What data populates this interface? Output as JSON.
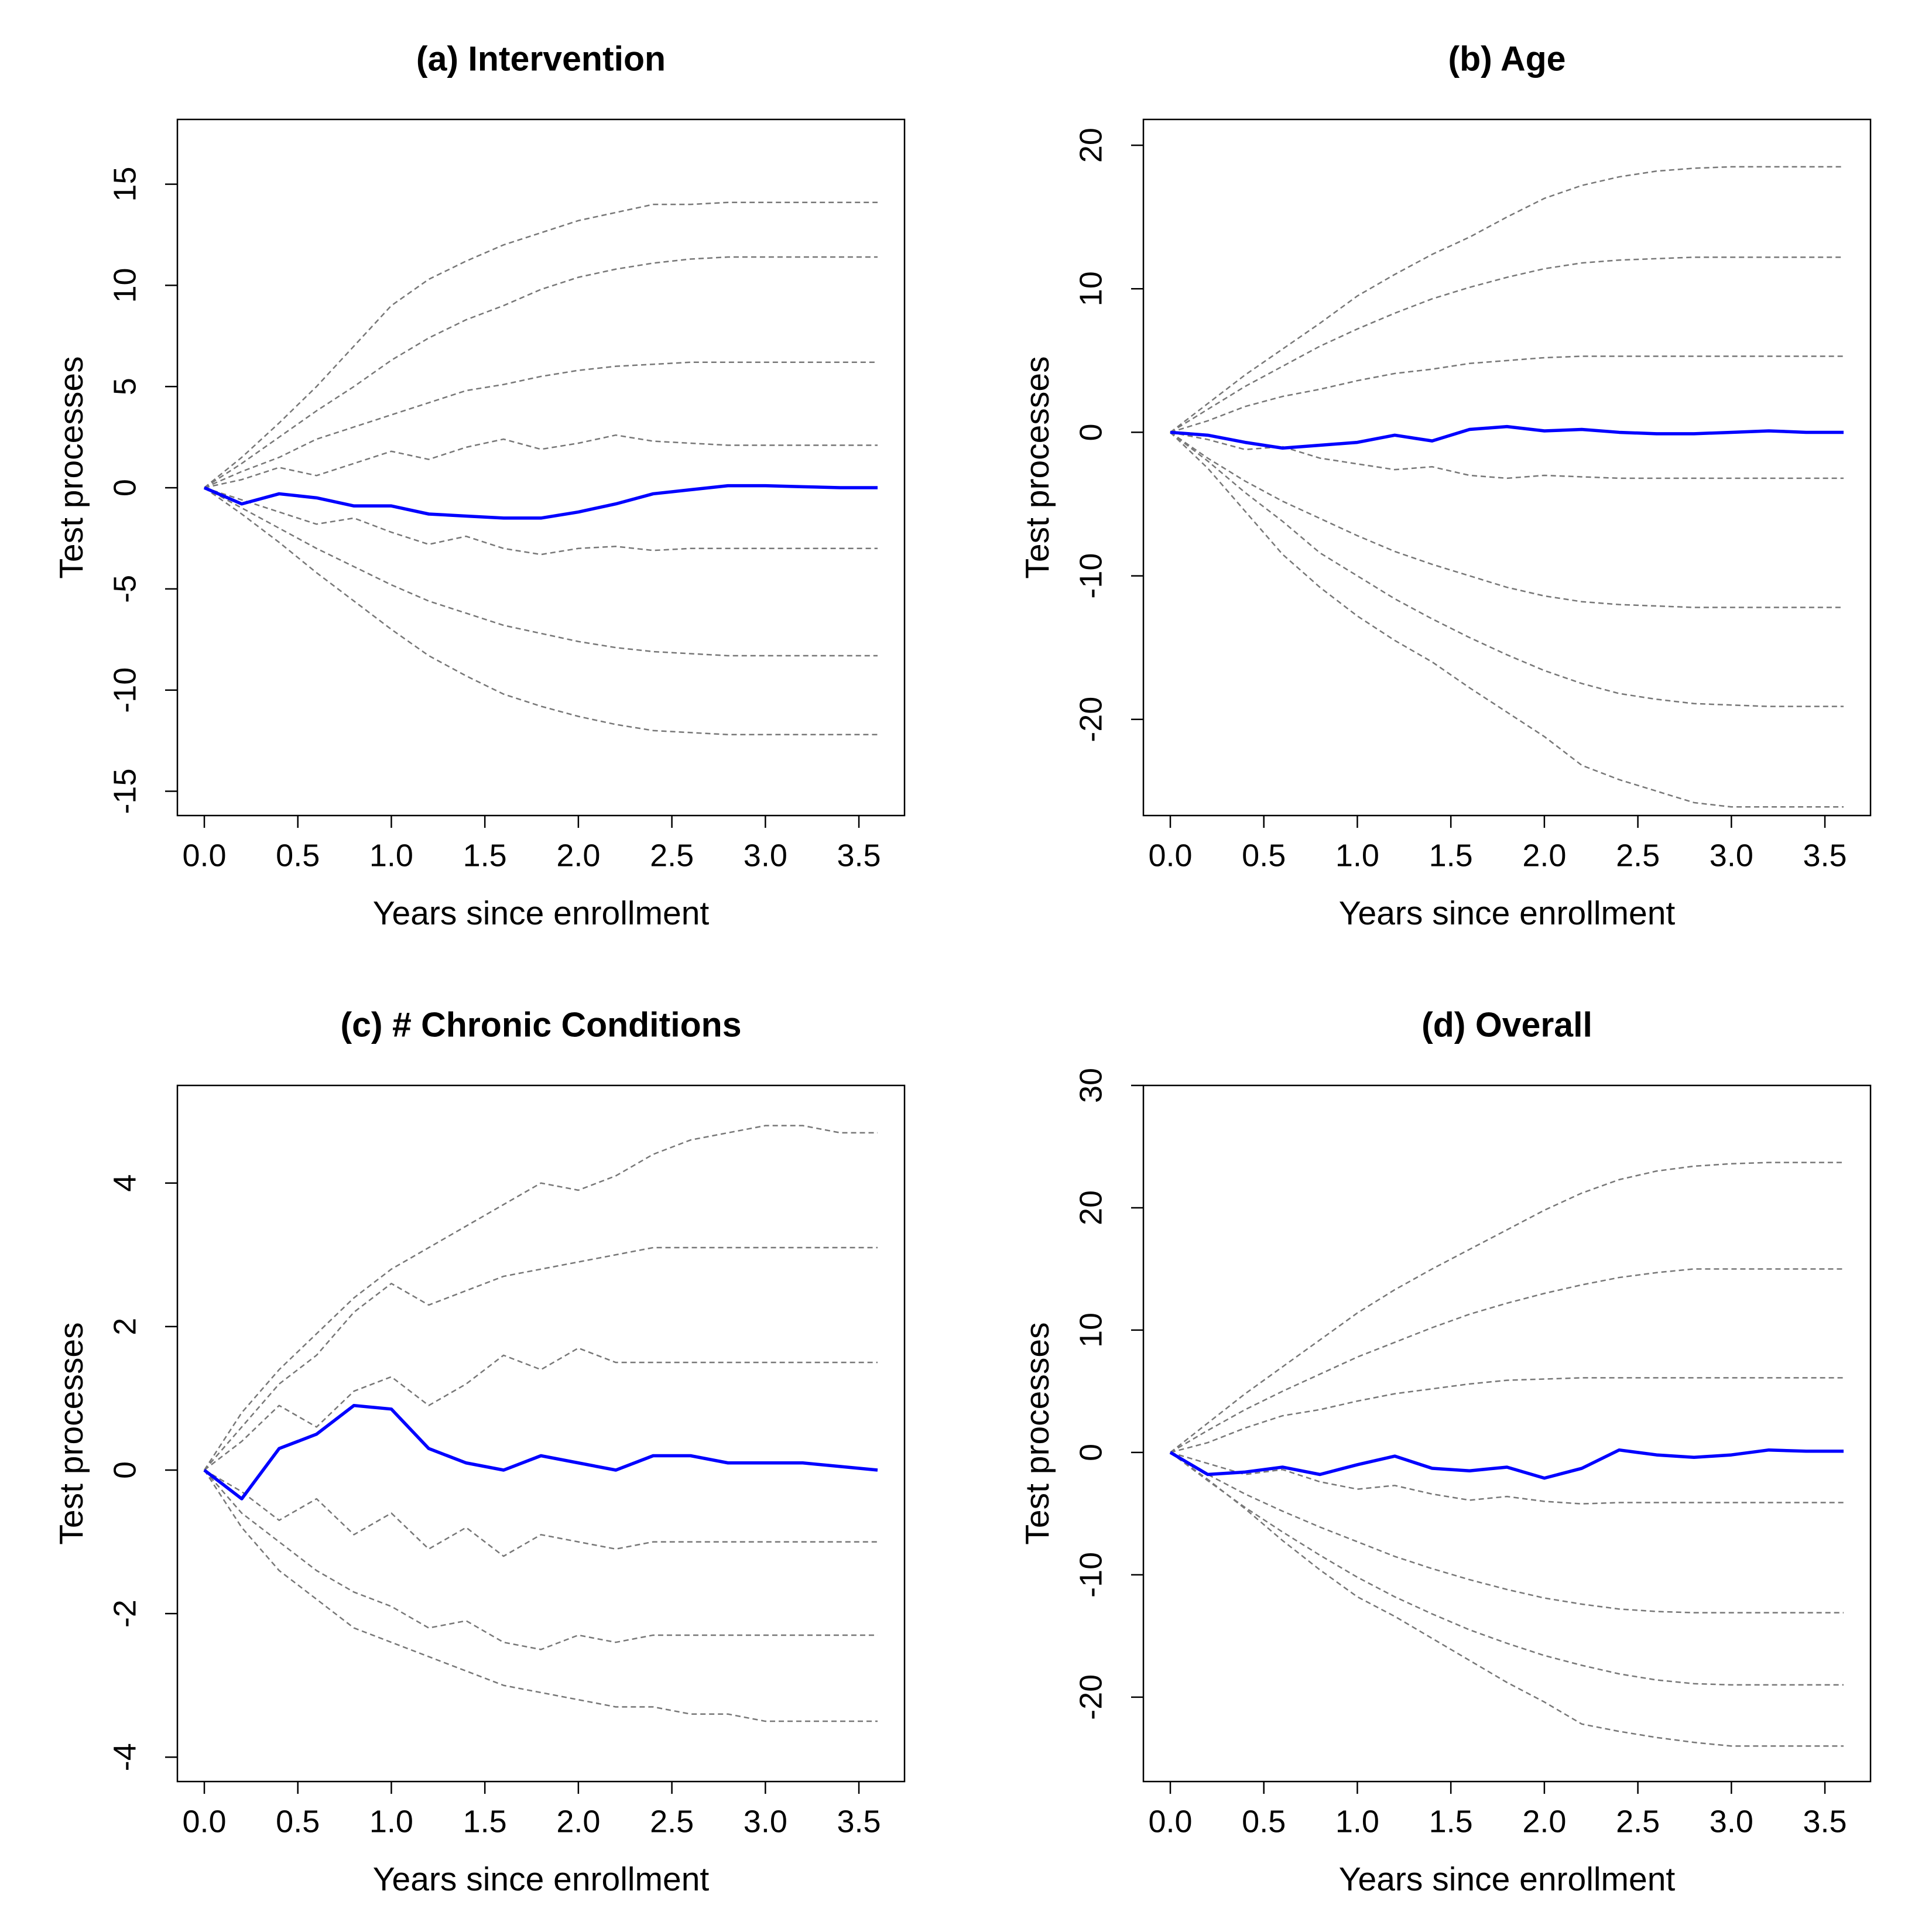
{
  "chart_data": [
    {
      "type": "line",
      "title": "(a) Intervention",
      "xlabel": "Years since enrollment",
      "ylabel": "Test processes",
      "xlim": [
        -0.144,
        3.744
      ],
      "ylim": [
        -16.2,
        18.2
      ],
      "xticks": [
        {
          "value": 0,
          "label": "0.0"
        },
        0.5,
        {
          "value": 1,
          "label": "1.0"
        },
        1.5,
        {
          "value": 2,
          "label": "2.0"
        },
        2.5,
        {
          "value": 3,
          "label": "3.0"
        },
        3.5
      ],
      "yticks": [
        -15,
        -10,
        -5,
        0,
        5,
        10,
        15
      ],
      "x": [
        0,
        0.2,
        0.4,
        0.6,
        0.8,
        1.0,
        1.2,
        1.4,
        1.6,
        1.8,
        2.0,
        2.2,
        2.4,
        2.6,
        2.8,
        3.0,
        3.2,
        3.4,
        3.6
      ],
      "series": [
        {
          "color": "#777777",
          "dash": true,
          "values": [
            0,
            1.5,
            3.2,
            5,
            7,
            9,
            10.3,
            11.2,
            12,
            12.6,
            13.2,
            13.6,
            14,
            14,
            14.1,
            14.1,
            14.1,
            14.1,
            14.1
          ]
        },
        {
          "color": "#777777",
          "dash": true,
          "values": [
            0,
            1.2,
            2.5,
            3.8,
            5,
            6.3,
            7.4,
            8.3,
            9,
            9.8,
            10.4,
            10.8,
            11.1,
            11.3,
            11.4,
            11.4,
            11.4,
            11.4,
            11.4
          ]
        },
        {
          "color": "#777777",
          "dash": true,
          "values": [
            0,
            0.8,
            1.5,
            2.4,
            3,
            3.6,
            4.2,
            4.8,
            5.1,
            5.5,
            5.8,
            6,
            6.1,
            6.2,
            6.2,
            6.2,
            6.2,
            6.2,
            6.2
          ]
        },
        {
          "color": "#777777",
          "dash": true,
          "values": [
            0,
            0.4,
            1,
            0.6,
            1.2,
            1.8,
            1.4,
            2,
            2.4,
            1.9,
            2.2,
            2.6,
            2.3,
            2.2,
            2.1,
            2.1,
            2.1,
            2.1,
            2.1
          ]
        },
        {
          "color": "#777777",
          "dash": true,
          "values": [
            0,
            -0.6,
            -1.2,
            -1.8,
            -1.5,
            -2.2,
            -2.8,
            -2.4,
            -3,
            -3.3,
            -3,
            -2.9,
            -3.1,
            -3,
            -3,
            -3,
            -3,
            -3,
            -3
          ]
        },
        {
          "color": "#777777",
          "dash": true,
          "values": [
            0,
            -1,
            -2,
            -3,
            -3.9,
            -4.8,
            -5.6,
            -6.2,
            -6.8,
            -7.2,
            -7.6,
            -7.9,
            -8.1,
            -8.2,
            -8.3,
            -8.3,
            -8.3,
            -8.3,
            -8.3
          ]
        },
        {
          "color": "#777777",
          "dash": true,
          "values": [
            0,
            -1.3,
            -2.7,
            -4.2,
            -5.6,
            -7,
            -8.3,
            -9.3,
            -10.2,
            -10.8,
            -11.3,
            -11.7,
            -12,
            -12.1,
            -12.2,
            -12.2,
            -12.2,
            -12.2,
            -12.2
          ]
        },
        {
          "color": "#0000ff",
          "dash": false,
          "values": [
            0,
            -0.8,
            -0.3,
            -0.5,
            -0.9,
            -0.9,
            -1.3,
            -1.4,
            -1.5,
            -1.5,
            -1.2,
            -0.8,
            -0.3,
            -0.1,
            0.1,
            0.1,
            0.05,
            0,
            0
          ]
        }
      ]
    },
    {
      "type": "line",
      "title": "(b) Age",
      "xlabel": "Years since enrollment",
      "ylabel": "Test processes",
      "xlim": [
        -0.144,
        3.744
      ],
      "ylim": [
        -26.7,
        21.8
      ],
      "xticks": [
        {
          "value": 0,
          "label": "0.0"
        },
        0.5,
        {
          "value": 1,
          "label": "1.0"
        },
        1.5,
        {
          "value": 2,
          "label": "2.0"
        },
        2.5,
        {
          "value": 3,
          "label": "3.0"
        },
        3.5
      ],
      "yticks": [
        -20,
        -10,
        0,
        10,
        20
      ],
      "x": [
        0,
        0.2,
        0.4,
        0.6,
        0.8,
        1.0,
        1.2,
        1.4,
        1.6,
        1.8,
        2.0,
        2.2,
        2.4,
        2.6,
        2.8,
        3.0,
        3.2,
        3.4,
        3.6
      ],
      "series": [
        {
          "color": "#777777",
          "dash": true,
          "values": [
            0,
            2,
            4,
            5.8,
            7.6,
            9.5,
            11,
            12.4,
            13.6,
            15,
            16.3,
            17.2,
            17.8,
            18.2,
            18.4,
            18.5,
            18.5,
            18.5,
            18.5
          ]
        },
        {
          "color": "#777777",
          "dash": true,
          "values": [
            0,
            1.6,
            3.2,
            4.6,
            6,
            7.2,
            8.3,
            9.3,
            10.1,
            10.8,
            11.4,
            11.8,
            12,
            12.1,
            12.2,
            12.2,
            12.2,
            12.2,
            12.2
          ]
        },
        {
          "color": "#777777",
          "dash": true,
          "values": [
            0,
            0.8,
            1.8,
            2.5,
            3,
            3.6,
            4.1,
            4.4,
            4.8,
            5,
            5.2,
            5.3,
            5.3,
            5.3,
            5.3,
            5.3,
            5.3,
            5.3,
            5.3
          ]
        },
        {
          "color": "#777777",
          "dash": true,
          "values": [
            0,
            -0.5,
            -1.2,
            -1,
            -1.8,
            -2.2,
            -2.6,
            -2.4,
            -3,
            -3.2,
            -3,
            -3.1,
            -3.2,
            -3.2,
            -3.2,
            -3.2,
            -3.2,
            -3.2,
            -3.2
          ]
        },
        {
          "color": "#777777",
          "dash": true,
          "values": [
            0,
            -1.8,
            -3.4,
            -4.8,
            -6,
            -7.2,
            -8.3,
            -9.2,
            -10,
            -10.8,
            -11.4,
            -11.8,
            -12,
            -12.1,
            -12.2,
            -12.2,
            -12.2,
            -12.2,
            -12.2
          ]
        },
        {
          "color": "#777777",
          "dash": true,
          "values": [
            0,
            -2,
            -4.2,
            -6.2,
            -8.4,
            -10,
            -11.6,
            -13,
            -14.3,
            -15.5,
            -16.6,
            -17.5,
            -18.2,
            -18.6,
            -18.9,
            -19,
            -19.1,
            -19.1,
            -19.1
          ]
        },
        {
          "color": "#777777",
          "dash": true,
          "values": [
            0,
            -2.5,
            -5.5,
            -8.5,
            -10.8,
            -12.8,
            -14.5,
            -16,
            -17.8,
            -19.5,
            -21.2,
            -23.2,
            -24.2,
            -25,
            -25.8,
            -26.1,
            -26.1,
            -26.1,
            -26.1
          ]
        },
        {
          "color": "#0000ff",
          "dash": false,
          "values": [
            0,
            -0.2,
            -0.7,
            -1.1,
            -0.9,
            -0.7,
            -0.2,
            -0.6,
            0.2,
            0.4,
            0.1,
            0.2,
            0,
            -0.1,
            -0.1,
            0,
            0.1,
            0,
            0
          ]
        }
      ]
    },
    {
      "type": "line",
      "title": "(c) # Chronic Conditions",
      "xlabel": "Years since enrollment",
      "ylabel": "Test processes",
      "xlim": [
        -0.144,
        3.744
      ],
      "ylim": [
        -4.34,
        5.36
      ],
      "xticks": [
        {
          "value": 0,
          "label": "0.0"
        },
        0.5,
        {
          "value": 1,
          "label": "1.0"
        },
        1.5,
        {
          "value": 2,
          "label": "2.0"
        },
        2.5,
        {
          "value": 3,
          "label": "3.0"
        },
        3.5
      ],
      "yticks": [
        -4,
        -2,
        0,
        2,
        4
      ],
      "x": [
        0,
        0.2,
        0.4,
        0.6,
        0.8,
        1.0,
        1.2,
        1.4,
        1.6,
        1.8,
        2.0,
        2.2,
        2.4,
        2.6,
        2.8,
        3.0,
        3.2,
        3.4,
        3.6
      ],
      "series": [
        {
          "color": "#777777",
          "dash": true,
          "values": [
            0,
            0.8,
            1.4,
            1.9,
            2.4,
            2.8,
            3.1,
            3.4,
            3.7,
            4,
            3.9,
            4.1,
            4.4,
            4.6,
            4.7,
            4.8,
            4.8,
            4.7,
            4.7
          ]
        },
        {
          "color": "#777777",
          "dash": true,
          "values": [
            0,
            0.6,
            1.2,
            1.6,
            2.2,
            2.6,
            2.3,
            2.5,
            2.7,
            2.8,
            2.9,
            3,
            3.1,
            3.1,
            3.1,
            3.1,
            3.1,
            3.1,
            3.1
          ]
        },
        {
          "color": "#777777",
          "dash": true,
          "values": [
            0,
            0.4,
            0.9,
            0.6,
            1.1,
            1.3,
            0.9,
            1.2,
            1.6,
            1.4,
            1.7,
            1.5,
            1.5,
            1.5,
            1.5,
            1.5,
            1.5,
            1.5,
            1.5
          ]
        },
        {
          "color": "#777777",
          "dash": true,
          "values": [
            0,
            -0.3,
            -0.7,
            -0.4,
            -0.9,
            -0.6,
            -1.1,
            -0.8,
            -1.2,
            -0.9,
            -1,
            -1.1,
            -1,
            -1,
            -1,
            -1,
            -1,
            -1,
            -1
          ]
        },
        {
          "color": "#777777",
          "dash": true,
          "values": [
            0,
            -0.6,
            -1,
            -1.4,
            -1.7,
            -1.9,
            -2.2,
            -2.1,
            -2.4,
            -2.5,
            -2.3,
            -2.4,
            -2.3,
            -2.3,
            -2.3,
            -2.3,
            -2.3,
            -2.3,
            -2.3
          ]
        },
        {
          "color": "#777777",
          "dash": true,
          "values": [
            0,
            -0.8,
            -1.4,
            -1.8,
            -2.2,
            -2.4,
            -2.6,
            -2.8,
            -3,
            -3.1,
            -3.2,
            -3.3,
            -3.3,
            -3.4,
            -3.4,
            -3.5,
            -3.5,
            -3.5,
            -3.5
          ]
        },
        {
          "color": "#0000ff",
          "dash": false,
          "values": [
            0,
            -0.4,
            0.3,
            0.5,
            0.9,
            0.85,
            0.3,
            0.1,
            0,
            0.2,
            0.1,
            0,
            0.2,
            0.2,
            0.1,
            0.1,
            0.1,
            0.05,
            0
          ]
        }
      ]
    },
    {
      "type": "line",
      "title": "(d) Overall",
      "xlabel": "Years since enrollment",
      "ylabel": "Test processes",
      "xlim": [
        -0.144,
        3.744
      ],
      "ylim": [
        -26.9,
        30
      ],
      "xticks": [
        {
          "value": 0,
          "label": "0.0"
        },
        0.5,
        {
          "value": 1,
          "label": "1.0"
        },
        1.5,
        {
          "value": 2,
          "label": "2.0"
        },
        2.5,
        {
          "value": 3,
          "label": "3.0"
        },
        3.5
      ],
      "yticks": [
        -20,
        -10,
        0,
        10,
        20,
        30
      ],
      "x": [
        0,
        0.2,
        0.4,
        0.6,
        0.8,
        1.0,
        1.2,
        1.4,
        1.6,
        1.8,
        2.0,
        2.2,
        2.4,
        2.6,
        2.8,
        3.0,
        3.2,
        3.4,
        3.6
      ],
      "series": [
        {
          "color": "#777777",
          "dash": true,
          "values": [
            0,
            2.4,
            4.8,
            7,
            9.2,
            11.4,
            13.3,
            15,
            16.6,
            18.2,
            19.8,
            21.2,
            22.3,
            23,
            23.4,
            23.6,
            23.7,
            23.7,
            23.7
          ]
        },
        {
          "color": "#777777",
          "dash": true,
          "values": [
            0,
            1.8,
            3.5,
            5,
            6.4,
            7.8,
            9,
            10.2,
            11.3,
            12.2,
            13,
            13.7,
            14.3,
            14.7,
            15,
            15,
            15,
            15,
            15
          ]
        },
        {
          "color": "#777777",
          "dash": true,
          "values": [
            0,
            0.8,
            2,
            3,
            3.5,
            4.2,
            4.8,
            5.2,
            5.6,
            5.9,
            6,
            6.1,
            6.1,
            6.1,
            6.1,
            6.1,
            6.1,
            6.1,
            6.1
          ]
        },
        {
          "color": "#777777",
          "dash": true,
          "values": [
            0,
            -0.9,
            -1.8,
            -1.4,
            -2.4,
            -3,
            -2.7,
            -3.4,
            -3.9,
            -3.6,
            -4,
            -4.2,
            -4.1,
            -4.1,
            -4.1,
            -4.1,
            -4.1,
            -4.1,
            -4.1
          ]
        },
        {
          "color": "#777777",
          "dash": true,
          "values": [
            0,
            -1.8,
            -3.4,
            -4.8,
            -6.1,
            -7.3,
            -8.5,
            -9.5,
            -10.4,
            -11.2,
            -11.9,
            -12.4,
            -12.8,
            -13,
            -13.1,
            -13.1,
            -13.1,
            -13.1,
            -13.1
          ]
        },
        {
          "color": "#777777",
          "dash": true,
          "values": [
            0,
            -2.3,
            -4.5,
            -6.5,
            -8.4,
            -10.2,
            -11.8,
            -13.2,
            -14.5,
            -15.6,
            -16.6,
            -17.4,
            -18.1,
            -18.6,
            -18.9,
            -19,
            -19,
            -19,
            -19
          ]
        },
        {
          "color": "#777777",
          "dash": true,
          "values": [
            0,
            -2.2,
            -4.6,
            -7.2,
            -9.6,
            -11.8,
            -13.4,
            -15.2,
            -17,
            -18.8,
            -20.4,
            -22.2,
            -22.8,
            -23.3,
            -23.7,
            -24,
            -24,
            -24,
            -24
          ]
        },
        {
          "color": "#0000ff",
          "dash": false,
          "values": [
            0,
            -1.8,
            -1.6,
            -1.2,
            -1.8,
            -1,
            -0.3,
            -1.3,
            -1.5,
            -1.2,
            -2.1,
            -1.3,
            0.2,
            -0.2,
            -0.4,
            -0.2,
            0.2,
            0.1,
            0.1
          ]
        }
      ]
    }
  ]
}
